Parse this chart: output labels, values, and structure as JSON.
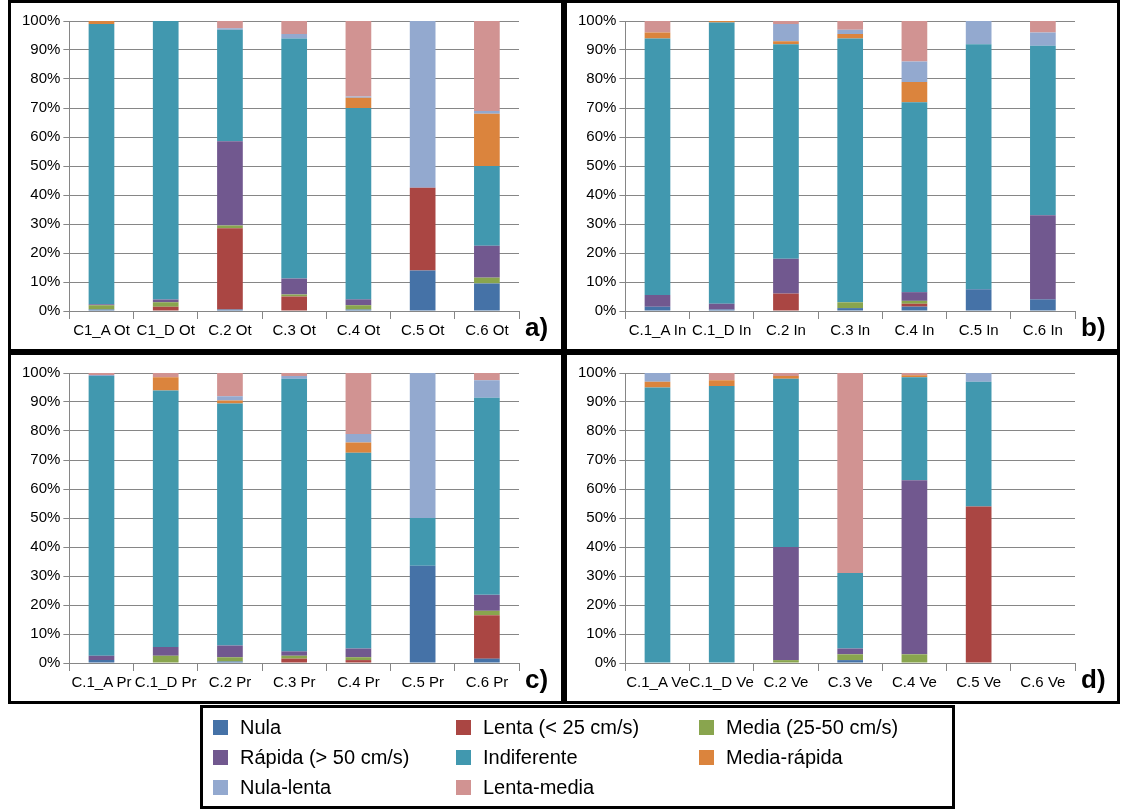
{
  "chart_data": [
    {
      "type": "bar",
      "stacked": true,
      "grid": "y",
      "legend": "bottom",
      "annotations": [
        "a)"
      ],
      "ylim": [
        0,
        100
      ],
      "yticks": [
        {
          "value": 0,
          "label": "0%"
        },
        {
          "value": 10,
          "label": "10%"
        },
        {
          "value": 20,
          "label": "20%"
        },
        {
          "value": 30,
          "label": "30%"
        },
        {
          "value": 40,
          "label": "40%"
        },
        {
          "value": 50,
          "label": "50%"
        },
        {
          "value": 60,
          "label": "60%"
        },
        {
          "value": 70,
          "label": "70%"
        },
        {
          "value": 80,
          "label": "80%"
        },
        {
          "value": 90,
          "label": "90%"
        },
        {
          "value": 100,
          "label": "100%"
        }
      ],
      "categories": [
        "C1_A Ot",
        "C1_D Ot",
        "C.2 Ot",
        "C.3 Ot",
        "C.4 Ot",
        "C.5 Ot",
        "C.6 Ot"
      ],
      "series": [
        {
          "name": "Nula",
          "color": "#4572a7",
          "values": [
            0.5,
            0,
            0.5,
            0,
            0.5,
            14,
            9.5
          ]
        },
        {
          "name": "Lenta (< 25 cm/s)",
          "color": "#aa4643",
          "values": [
            0,
            1.5,
            28,
            5,
            0,
            28.5,
            0
          ]
        },
        {
          "name": "Media (25-50 cm/s)",
          "color": "#89a54e",
          "values": [
            1.5,
            1.5,
            1,
            0.7,
            1.5,
            0,
            2
          ]
        },
        {
          "name": "Rápida (> 50 cm/s)",
          "color": "#71588f",
          "values": [
            0.3,
            1,
            29,
            5.5,
            2,
            0,
            11
          ]
        },
        {
          "name": "Indiferente",
          "color": "#4198af",
          "values": [
            96.7,
            96,
            38.5,
            82.8,
            66,
            0,
            27.5
          ]
        },
        {
          "name": "Media-rápida",
          "color": "#db843d",
          "values": [
            1,
            0,
            0,
            0,
            3.5,
            0,
            18
          ]
        },
        {
          "name": "Nula-lenta",
          "color": "#93a9cf",
          "values": [
            0,
            0,
            0.5,
            1.5,
            0.5,
            57.5,
            1
          ]
        },
        {
          "name": "Lenta-media",
          "color": "#d19392",
          "values": [
            0,
            0,
            2.5,
            4.5,
            26,
            0,
            31
          ]
        }
      ]
    },
    {
      "type": "bar",
      "stacked": true,
      "grid": "y",
      "annotations": [
        "b)"
      ],
      "ylim": [
        0,
        100
      ],
      "yticks": [
        {
          "value": 0,
          "label": "0%"
        },
        {
          "value": 10,
          "label": "10%"
        },
        {
          "value": 20,
          "label": "20%"
        },
        {
          "value": 30,
          "label": "30%"
        },
        {
          "value": 40,
          "label": "40%"
        },
        {
          "value": 50,
          "label": "50%"
        },
        {
          "value": 60,
          "label": "60%"
        },
        {
          "value": 70,
          "label": "70%"
        },
        {
          "value": 80,
          "label": "80%"
        },
        {
          "value": 90,
          "label": "90%"
        },
        {
          "value": 100,
          "label": "100%"
        }
      ],
      "categories": [
        "C.1_A In",
        "C.1_D In",
        "C.2 In",
        "C.3 In",
        "C.4 In",
        "C.5 In",
        "C.6 In"
      ],
      "series": [
        {
          "color": "#4572a7",
          "values": [
            1.5,
            0.5,
            0,
            1,
            1.5,
            7.5,
            4
          ]
        },
        {
          "color": "#aa4643",
          "values": [
            0,
            0,
            6,
            0,
            1,
            0,
            0
          ]
        },
        {
          "color": "#89a54e",
          "values": [
            0,
            0,
            0,
            2,
            1,
            0,
            0
          ]
        },
        {
          "color": "#71588f",
          "values": [
            4,
            2,
            12,
            0,
            3,
            0,
            29
          ]
        },
        {
          "color": "#4198af",
          "values": [
            88.5,
            97,
            74,
            91,
            65.5,
            84.5,
            58.5
          ]
        },
        {
          "color": "#db843d",
          "values": [
            2,
            0.5,
            1,
            1.5,
            7,
            0,
            0
          ]
        },
        {
          "color": "#93a9cf",
          "values": [
            0,
            0,
            6,
            1.5,
            7,
            8,
            4.5
          ]
        },
        {
          "color": "#d19392",
          "values": [
            4,
            0,
            1,
            3,
            14,
            0,
            4
          ]
        }
      ]
    },
    {
      "type": "bar",
      "stacked": true,
      "grid": "y",
      "annotations": [
        "c)"
      ],
      "ylim": [
        0,
        100
      ],
      "yticks": [
        {
          "value": 0,
          "label": "0%"
        },
        {
          "value": 10,
          "label": "10%"
        },
        {
          "value": 20,
          "label": "20%"
        },
        {
          "value": 30,
          "label": "30%"
        },
        {
          "value": 40,
          "label": "40%"
        },
        {
          "value": 50,
          "label": "50%"
        },
        {
          "value": 60,
          "label": "60%"
        },
        {
          "value": 70,
          "label": "70%"
        },
        {
          "value": 80,
          "label": "80%"
        },
        {
          "value": 90,
          "label": "90%"
        },
        {
          "value": 100,
          "label": "100%"
        }
      ],
      "categories": [
        "C.1_A Pr",
        "C.1_D Pr",
        "C.2 Pr",
        "C.3 Pr",
        "C.4 Pr",
        "C.5 Pr",
        "C.6 Pr"
      ],
      "series": [
        {
          "color": "#4572a7",
          "values": [
            1,
            0,
            0.5,
            0,
            0,
            33.5,
            1.5
          ]
        },
        {
          "color": "#aa4643",
          "values": [
            0,
            0,
            0,
            1.5,
            1,
            0,
            15
          ]
        },
        {
          "color": "#89a54e",
          "values": [
            0,
            2.5,
            1.5,
            1,
            1,
            0,
            1.5
          ]
        },
        {
          "color": "#71588f",
          "values": [
            1.5,
            3,
            4,
            1.5,
            3,
            0,
            5.5
          ]
        },
        {
          "color": "#4198af",
          "values": [
            96.5,
            88.5,
            83.5,
            94,
            67.5,
            16.5,
            68
          ]
        },
        {
          "color": "#db843d",
          "values": [
            0,
            4.5,
            1,
            0,
            3.5,
            0,
            0
          ]
        },
        {
          "color": "#93a9cf",
          "values": [
            0.3,
            0,
            1.5,
            1,
            3,
            50,
            6
          ]
        },
        {
          "color": "#d19392",
          "values": [
            0.7,
            1.5,
            8,
            1,
            21,
            0,
            2.5
          ]
        }
      ]
    },
    {
      "type": "bar",
      "stacked": true,
      "grid": "y",
      "annotations": [
        "d)"
      ],
      "ylim": [
        0,
        100
      ],
      "yticks": [
        {
          "value": 0,
          "label": "0%"
        },
        {
          "value": 10,
          "label": "10%"
        },
        {
          "value": 20,
          "label": "20%"
        },
        {
          "value": 30,
          "label": "30%"
        },
        {
          "value": 40,
          "label": "40%"
        },
        {
          "value": 50,
          "label": "50%"
        },
        {
          "value": 60,
          "label": "60%"
        },
        {
          "value": 70,
          "label": "70%"
        },
        {
          "value": 80,
          "label": "80%"
        },
        {
          "value": 90,
          "label": "90%"
        },
        {
          "value": 100,
          "label": "100%"
        }
      ],
      "categories": [
        "C.1_A Ve",
        "C.1_D Ve",
        "C.2 Ve",
        "C.3 Ve",
        "C.4 Ve",
        "C.5 Ve",
        "C.6 Ve"
      ],
      "series": [
        {
          "color": "#4572a7",
          "values": [
            0,
            0,
            0,
            1,
            0,
            0,
            null
          ]
        },
        {
          "color": "#aa4643",
          "values": [
            0,
            0,
            0,
            0,
            0,
            54,
            null
          ]
        },
        {
          "color": "#89a54e",
          "values": [
            0,
            0,
            1,
            2,
            3,
            0,
            null
          ]
        },
        {
          "color": "#71588f",
          "values": [
            0,
            0,
            39,
            2,
            60,
            0,
            null
          ]
        },
        {
          "color": "#4198af",
          "values": [
            95,
            95.5,
            58,
            26,
            35.5,
            43,
            null
          ]
        },
        {
          "color": "#db843d",
          "values": [
            2,
            2,
            1,
            0,
            0.7,
            0,
            null
          ]
        },
        {
          "color": "#93a9cf",
          "values": [
            3,
            0,
            0,
            0,
            0,
            3,
            null
          ]
        },
        {
          "color": "#d19392",
          "values": [
            0,
            2.5,
            1,
            69,
            0.8,
            0,
            null
          ]
        }
      ]
    }
  ]
}
